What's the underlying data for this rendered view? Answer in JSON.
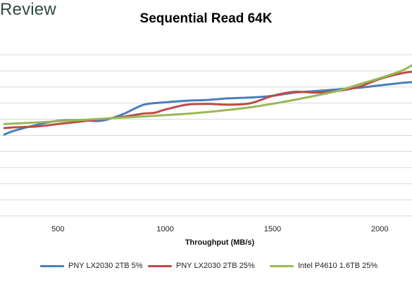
{
  "logo": {
    "text": "Review"
  },
  "chart_data": {
    "type": "line",
    "title": "Sequential Read 64K",
    "xlabel": "Throughput (MB/s)",
    "ylabel": "",
    "xlim": [
      230,
      2150
    ],
    "ylim": [
      0,
      11
    ],
    "xticks": [
      500,
      1000,
      1500,
      2000
    ],
    "grid": true,
    "legend_position": "bottom",
    "series": [
      {
        "name": "PNY LX2030 2TB 5%",
        "color": "#4a7ebb",
        "x": [
          250,
          300,
          400,
          500,
          600,
          700,
          800,
          900,
          1000,
          1100,
          1200,
          1300,
          1400,
          1500,
          1600,
          1700,
          1800,
          1900,
          2000,
          2100,
          2150
        ],
        "y": [
          5.05,
          5.3,
          5.65,
          5.9,
          5.95,
          5.9,
          6.3,
          6.9,
          7.05,
          7.15,
          7.2,
          7.3,
          7.35,
          7.45,
          7.65,
          7.75,
          7.85,
          7.95,
          8.1,
          8.25,
          8.3
        ]
      },
      {
        "name": "PNY LX2030 2TB 25%",
        "color": "#be4b48",
        "x": [
          250,
          300,
          400,
          500,
          600,
          700,
          800,
          900,
          950,
          1000,
          1100,
          1200,
          1300,
          1400,
          1500,
          1600,
          1700,
          1800,
          1900,
          2000,
          2100,
          2150
        ],
        "y": [
          5.45,
          5.5,
          5.55,
          5.7,
          5.85,
          6.0,
          6.15,
          6.35,
          6.4,
          6.6,
          6.9,
          6.95,
          6.9,
          7.0,
          7.45,
          7.7,
          7.65,
          7.75,
          8.0,
          8.5,
          8.85,
          8.95
        ]
      },
      {
        "name": "Intel P4610 1.6TB 25%",
        "color": "#98b954",
        "x": [
          250,
          400,
          600,
          800,
          1000,
          1200,
          1400,
          1600,
          1800,
          1900,
          2000,
          2100,
          2150
        ],
        "y": [
          5.7,
          5.8,
          5.95,
          6.1,
          6.25,
          6.45,
          6.75,
          7.2,
          7.75,
          8.15,
          8.55,
          9.0,
          9.35
        ]
      }
    ]
  }
}
